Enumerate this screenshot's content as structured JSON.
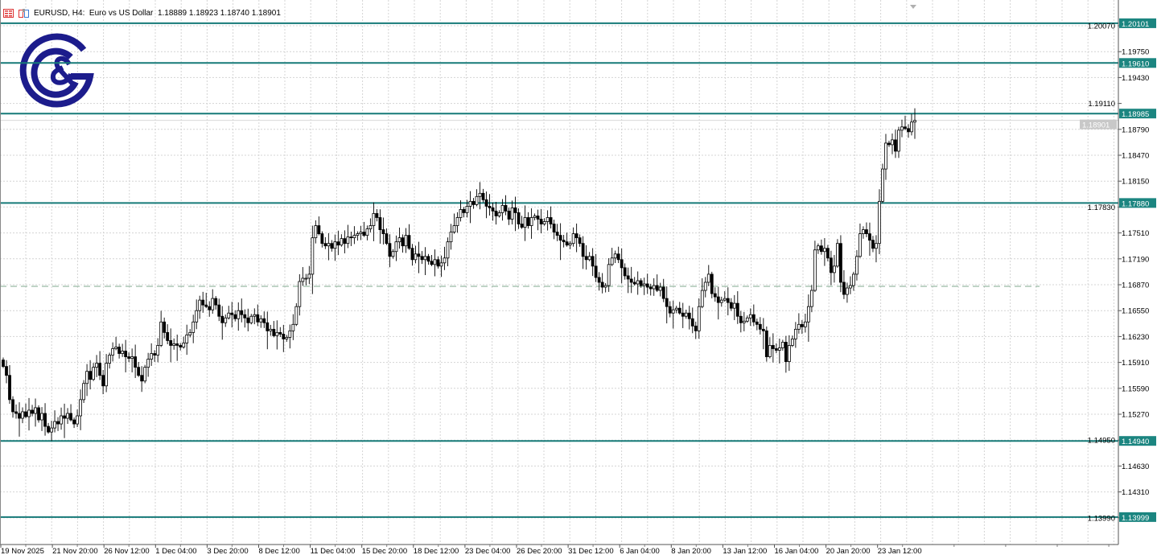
{
  "header": {
    "symbol_timeframe": "EURUSD, H4:",
    "description": "Euro vs US Dollar",
    "ohlc_readout": "1.18889 1.18923 1.18740 1.18901"
  },
  "colors": {
    "level_line": "#167a78",
    "level_label_bg": "#1b8580",
    "dashed_line": "#7fa98e",
    "current_price_bg": "#c8c8c8",
    "grid": "#d4d4d4",
    "logo": "#1c1c8c",
    "bull_body": "#ffffff",
    "bear_body": "#000000"
  },
  "logo": {
    "text": "G&G"
  },
  "chart_data": {
    "type": "candlestick",
    "symbol": "EURUSD",
    "timeframe": "H4",
    "ylim": [
      1.1376,
      1.2042
    ],
    "y_ticks": [
      "1.20070",
      "1.19750",
      "1.19430",
      "1.19110",
      "1.18790",
      "1.18470",
      "1.18150",
      "1.17830",
      "1.17510",
      "1.17190",
      "1.16870",
      "1.16550",
      "1.16230",
      "1.15910",
      "1.15590",
      "1.15270",
      "1.14950",
      "1.14630",
      "1.14310",
      "1.13990"
    ],
    "x_ticks": [
      "19 Nov 2025",
      "21 Nov 20:00",
      "26 Nov 12:00",
      "1 Dec 04:00",
      "3 Dec 20:00",
      "8 Dec 12:00",
      "11 Dec 04:00",
      "15 Dec 20:00",
      "18 Dec 12:00",
      "23 Dec 04:00",
      "26 Dec 20:00",
      "31 Dec 12:00",
      "6 Jan 04:00",
      "8 Jan 20:00",
      "13 Jan 12:00",
      "16 Jan 04:00",
      "20 Jan 20:00",
      "23 Jan 12:00"
    ],
    "grid": true,
    "levels": [
      "1.20101",
      "1.19610",
      "1.18985",
      "1.17880",
      "1.14940",
      "1.13999"
    ],
    "dashed_level": 1.1685,
    "current_price": "1.18901",
    "closes": [
      1.1586,
      1.1575,
      1.1545,
      1.153,
      1.1528,
      1.1522,
      1.153,
      1.1524,
      1.1532,
      1.1528,
      1.1535,
      1.152,
      1.1528,
      1.1512,
      1.1505,
      1.151,
      1.1518,
      1.1515,
      1.1525,
      1.1522,
      1.1528,
      1.152,
      1.1515,
      1.1525,
      1.1545,
      1.1565,
      1.158,
      1.157,
      1.1585,
      1.159,
      1.1575,
      1.1562,
      1.159,
      1.16,
      1.1608,
      1.161,
      1.1602,
      1.1605,
      1.1598,
      1.1596,
      1.1598,
      1.1585,
      1.1575,
      1.1568,
      1.1585,
      1.1595,
      1.1602,
      1.16,
      1.1612,
      1.1641,
      1.1628,
      1.1618,
      1.1612,
      1.1614,
      1.1612,
      1.161,
      1.1615,
      1.1625,
      1.1628,
      1.1641,
      1.1655,
      1.1668,
      1.1662,
      1.166,
      1.1656,
      1.167,
      1.1662,
      1.1648,
      1.164,
      1.1646,
      1.1652,
      1.165,
      1.1645,
      1.1655,
      1.165,
      1.1646,
      1.164,
      1.1648,
      1.165,
      1.1641,
      1.1645,
      1.164,
      1.163,
      1.1632,
      1.1624,
      1.1628,
      1.1626,
      1.162,
      1.1622,
      1.163,
      1.1638,
      1.166,
      1.1691,
      1.1695,
      1.1695,
      1.17,
      1.1745,
      1.176,
      1.175,
      1.1738,
      1.1735,
      1.1738,
      1.1732,
      1.174,
      1.1736,
      1.1744,
      1.1738,
      1.1746,
      1.1745,
      1.1748,
      1.175,
      1.1752,
      1.1748,
      1.1756,
      1.176,
      1.1775,
      1.177,
      1.1755,
      1.175,
      1.1738,
      1.1722,
      1.1728,
      1.174,
      1.1745,
      1.1735,
      1.1748,
      1.1732,
      1.1718,
      1.1725,
      1.1722,
      1.1718,
      1.1722,
      1.1716,
      1.1712,
      1.1718,
      1.171,
      1.1714,
      1.172,
      1.174,
      1.1752,
      1.176,
      1.177,
      1.178,
      1.1776,
      1.1784,
      1.179,
      1.1786,
      1.1796,
      1.18,
      1.1792,
      1.1784,
      1.1782,
      1.1778,
      1.1772,
      1.1776,
      1.1785,
      1.1778,
      1.1768,
      1.1782,
      1.1776,
      1.1762,
      1.1758,
      1.177,
      1.176,
      1.177,
      1.1772,
      1.1768,
      1.1762,
      1.1765,
      1.177,
      1.1762,
      1.1752,
      1.1748,
      1.1742,
      1.174,
      1.1736,
      1.1738,
      1.175,
      1.1745,
      1.1738,
      1.1722,
      1.1718,
      1.1722,
      1.171,
      1.1696,
      1.169,
      1.1684,
      1.1686,
      1.1712,
      1.172,
      1.1725,
      1.1718,
      1.1708,
      1.1698,
      1.1694,
      1.169,
      1.1688,
      1.1692,
      1.1686,
      1.1688,
      1.1684,
      1.1682,
      1.1686,
      1.168,
      1.1684,
      1.167,
      1.166,
      1.1652,
      1.1656,
      1.1658,
      1.1652,
      1.1648,
      1.1652,
      1.1645,
      1.1636,
      1.163,
      1.166,
      1.168,
      1.169,
      1.17,
      1.1676,
      1.1672,
      1.1665,
      1.1668,
      1.167,
      1.1665,
      1.1658,
      1.1664,
      1.1648,
      1.164,
      1.1642,
      1.1646,
      1.165,
      1.1641,
      1.1638,
      1.1632,
      1.163,
      1.1598,
      1.1612,
      1.1608,
      1.1606,
      1.1609,
      1.1616,
      1.1592,
      1.1612,
      1.162,
      1.1632,
      1.1638,
      1.1635,
      1.1641,
      1.166,
      1.168,
      1.173,
      1.1735,
      1.1728,
      1.1732,
      1.172,
      1.1702,
      1.171,
      1.1738,
      1.169,
      1.1675,
      1.1683,
      1.1686,
      1.17,
      1.1722,
      1.175,
      1.1755,
      1.175,
      1.1742,
      1.1732,
      1.1738,
      1.179,
      1.183,
      1.1862,
      1.186,
      1.1866,
      1.1852,
      1.1878,
      1.1882,
      1.188,
      1.1876,
      1.1888,
      1.189
    ]
  }
}
